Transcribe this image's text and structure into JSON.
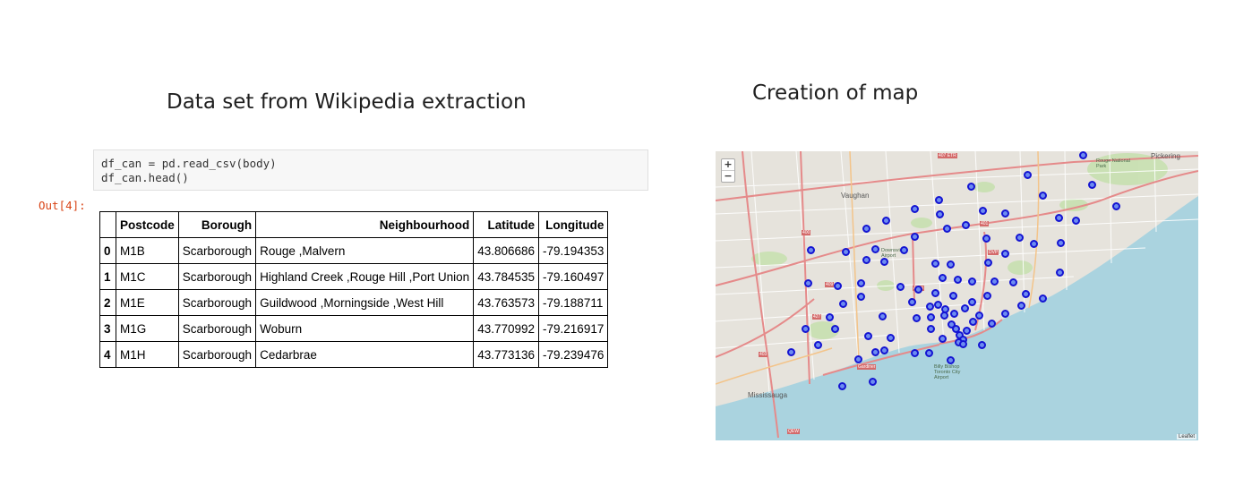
{
  "slide": {
    "left_title": "Data set from Wikipedia extraction",
    "right_title": "Creation of map"
  },
  "notebook": {
    "code_lines": [
      "df_can = pd.read_csv(body)",
      "df_can.head()"
    ],
    "output_prompt": "Out[4]:",
    "table": {
      "columns": [
        "",
        "Postcode",
        "Borough",
        "Neighbourhood",
        "Latitude",
        "Longitude"
      ],
      "rows": [
        [
          "0",
          "M1B",
          "Scarborough",
          "Rouge ,Malvern",
          "43.806686",
          "-79.194353"
        ],
        [
          "1",
          "M1C",
          "Scarborough",
          "Highland Creek ,Rouge Hill ,Port Union",
          "43.784535",
          "-79.160497"
        ],
        [
          "2",
          "M1E",
          "Scarborough",
          "Guildwood ,Morningside ,West Hill",
          "43.763573",
          "-79.188711"
        ],
        [
          "3",
          "M1G",
          "Scarborough",
          "Woburn",
          "43.770992",
          "-79.216917"
        ],
        [
          "4",
          "M1H",
          "Scarborough",
          "Cedarbrae",
          "43.773136",
          "-79.239476"
        ]
      ]
    }
  },
  "map": {
    "zoom_in": "+",
    "zoom_out": "−",
    "attribution": "Leaflet",
    "place_labels": [
      "Vaughan",
      "Mississauga",
      "Pickering",
      "Rouge National Park",
      "Billy Bishop Toronto City Airport",
      "Downsview Airport"
    ],
    "road_labels": [
      "407 ETR",
      "401",
      "DVP",
      "Allen",
      "Gardiner",
      "QEW",
      "427",
      "409",
      "403",
      "400"
    ],
    "marker_color": "#1414d2",
    "water_color": "#aad3df"
  }
}
